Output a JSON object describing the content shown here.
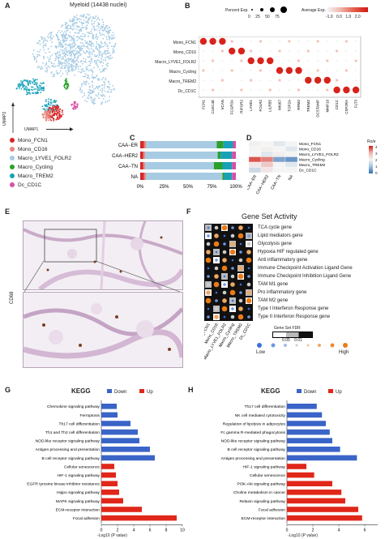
{
  "panels": {
    "A": {
      "label": "A",
      "title": "Myeloid (14438 nuclei)",
      "xlabel": "UMAP1",
      "ylabel": "UMAP2",
      "legend": [
        {
          "name": "Mono_FCN1",
          "color": "#d62728"
        },
        {
          "name": "Mono_CD16",
          "color": "#e8867a"
        },
        {
          "name": "Macro_LYVE1_FOLR2",
          "color": "#a6cbe3"
        },
        {
          "name": "Macro_Cycling",
          "color": "#2ca02c"
        },
        {
          "name": "Macro_TREM2",
          "color": "#17a2b8"
        },
        {
          "name": "Dc_CD1C",
          "color": "#d64fa6"
        }
      ]
    },
    "B": {
      "label": "B",
      "legend_size_title": "Percent Exp.",
      "legend_size_ticks": [
        "0",
        "25",
        "50",
        "75"
      ],
      "legend_color_title": "Average Exp.",
      "legend_color_ticks": [
        "-1.0",
        "0.0",
        "1.0",
        "2.0"
      ],
      "rows": [
        "Mono_FCN1",
        "Mono_CD16",
        "Macro_LYVE1_FOLR2",
        "Macro_Cycling",
        "Macro_TREM2",
        "Dc_CD1C"
      ],
      "genes": [
        "FCN1",
        "CLEC4E",
        "VCAN",
        "FCGR3A",
        "RIPOR2",
        "LYVE1",
        "FOLR2",
        "LILRB5",
        "MKI67",
        "TOP2A",
        "RRM2",
        "TREM2",
        "DCSTAMP",
        "MMP19",
        "CD1C",
        "CSF2RA",
        "FLT3"
      ]
    },
    "C": {
      "label": "C",
      "categories": [
        "CAA−ER",
        "CAA−HER2",
        "CAA−TN",
        "NA"
      ],
      "x_ticks": [
        "0%",
        "25%",
        "50%",
        "75%",
        "100%"
      ],
      "segment_colors": [
        "#d62728",
        "#e8867a",
        "#a6cbe3",
        "#2ca02c",
        "#17a2b8",
        "#d64fa6"
      ]
    },
    "D": {
      "label": "D",
      "rows": [
        "Mono_FCN1",
        "Mono_CD16",
        "Macro_LYVE1_FOLR2",
        "Macro_Cycling",
        "Macro_TREM2",
        "Dc_CD1C"
      ],
      "cols": [
        "CAA−ER",
        "CAA−HER2",
        "CAA−TN",
        "NA"
      ],
      "legend_title": "Ro/e",
      "legend_ticks": [
        "4",
        "3",
        "2",
        "1",
        "0"
      ]
    },
    "E": {
      "label": "E",
      "ylabel": "CD68"
    },
    "F": {
      "label": "F",
      "title": "Gene Set Activity",
      "gene_sets": [
        "TCA cycle gene",
        "Lipid mediators gene",
        "Glycolysis gene",
        "Hypoxia HIF regulated gene",
        "Anti inflammatory gene",
        "Immune Checkpoint Activation Ligand Gene",
        "Immune Checkpoint Inhibition Ligand Gene",
        "TAM M1 gene",
        "Pro inflammatory gene",
        "TAM M2 gene",
        "Type I Interferon Response gene",
        "Type II Interferon Response gene"
      ],
      "cols": [
        "Mono_FCN1",
        "Mono_CD16",
        "Macro_LYVE1_FOLR2",
        "Macro_Cycling",
        "Macro_TREM2",
        "Dc_CD1C"
      ],
      "fdr_title": "Gene Set FDR",
      "fdr_ticks": [
        "0.05",
        "0.01"
      ],
      "scale_low": "Low",
      "scale_high": "High"
    },
    "G": {
      "label": "G",
      "title": "KEGG",
      "legend_down": "Down",
      "legend_up": "Up",
      "xlabel": "-Log10 (P value)",
      "x_ticks": [
        "0",
        "2",
        "4",
        "6",
        "8",
        "10"
      ]
    },
    "H": {
      "label": "H",
      "title": "KEGG",
      "legend_down": "Down",
      "legend_up": "Up",
      "xlabel": "-Log10 (P value)",
      "x_ticks": [
        "0",
        "2",
        "4",
        "6"
      ]
    }
  },
  "colors": {
    "down": "#3a64c8",
    "up": "#e0271a"
  },
  "chart_data": [
    {
      "panel": "C",
      "type": "bar",
      "stacked": true,
      "horizontal": true,
      "categories": [
        "CAA−ER",
        "CAA−HER2",
        "CAA−TN",
        "NA"
      ],
      "series": [
        {
          "values": [
            4,
            3,
            3,
            4
          ]
        },
        {
          "values": [
            2,
            2,
            2,
            2
          ]
        },
        {
          "values": [
            74,
            76,
            72,
            80
          ]
        },
        {
          "values": [
            7,
            3,
            9,
            2
          ]
        },
        {
          "values": [
            10,
            12,
            10,
            8
          ]
        },
        {
          "values": [
            3,
            4,
            4,
            4
          ]
        }
      ],
      "xlim": [
        0,
        100
      ]
    },
    {
      "panel": "D",
      "type": "heatmap",
      "rows": [
        "Mono_FCN1",
        "Mono_CD16",
        "Macro_LYVE1_FOLR2",
        "Macro_Cycling",
        "Macro_TREM2",
        "Dc_CD1C"
      ],
      "cols": [
        "CAA−ER",
        "CAA−HER2",
        "CAA−TN",
        "NA"
      ],
      "values": [
        [
          1.1,
          1.0,
          0.9,
          1.0
        ],
        [
          1.0,
          1.1,
          1.0,
          0.9
        ],
        [
          1.0,
          0.9,
          1.1,
          1.0
        ],
        [
          3.2,
          2.6,
          0.4,
          0.3
        ],
        [
          1.2,
          1.6,
          1.0,
          0.9
        ],
        [
          0.8,
          1.2,
          1.0,
          1.0
        ]
      ]
    },
    {
      "panel": "G",
      "type": "bar",
      "horizontal": true,
      "categories": [
        "Chemokine signaling pathway",
        "Ferroptosis",
        "Th17 cell differentiation",
        "Th1 and Th2 cell differentiation",
        "NOD-like receptor signaling pathway",
        "Antigen processing and presentation",
        "B cell receptor signaling pathway",
        "Cellular senescence",
        "HIF-1 signaling pathway",
        "EGFR tyrosine kinase inhibitor resistance",
        "Hippo signaling pathway",
        "MAPK signaling pathway",
        "ECM-receptor interaction",
        "Focal adhesion"
      ],
      "series": [
        {
          "name": "Down",
          "values": [
            1.9,
            2.0,
            3.6,
            4.5,
            4.7,
            6.0,
            6.6,
            null,
            null,
            null,
            null,
            null,
            null,
            null
          ]
        },
        {
          "name": "Up",
          "values": [
            null,
            null,
            null,
            null,
            null,
            null,
            null,
            1.6,
            1.8,
            2.0,
            2.2,
            2.7,
            5.0,
            9.3
          ]
        }
      ],
      "xlim": [
        0,
        10
      ]
    },
    {
      "panel": "H",
      "type": "bar",
      "horizontal": true,
      "categories": [
        "Th17 cell differentiation",
        "NK cell mediated cytotoxicity",
        "Regulation of lipolysis in adipocytes",
        "Fc gamma R-mediated phagocytosis",
        "NOD-like receptor signaling pathway",
        "B cell receptor signaling pathway",
        "Antigen processing and presentation",
        "HIF-1 signaling pathway",
        "Cellular senescence",
        "PI3K-Akt signaling pathway",
        "Choline metabolism in cancer",
        "Relaxin signaling pathway",
        "Focal adhesion",
        "ECM-receptor interaction"
      ],
      "series": [
        {
          "name": "Down",
          "values": [
            2.3,
            2.7,
            3.0,
            3.3,
            3.5,
            4.1,
            5.4,
            null,
            null,
            null,
            null,
            null,
            null,
            null
          ]
        },
        {
          "name": "Up",
          "values": [
            null,
            null,
            null,
            null,
            null,
            null,
            null,
            1.5,
            2.1,
            3.5,
            4.2,
            4.5,
            5.5,
            5.8
          ]
        }
      ],
      "xlim": [
        0,
        7
      ]
    }
  ]
}
